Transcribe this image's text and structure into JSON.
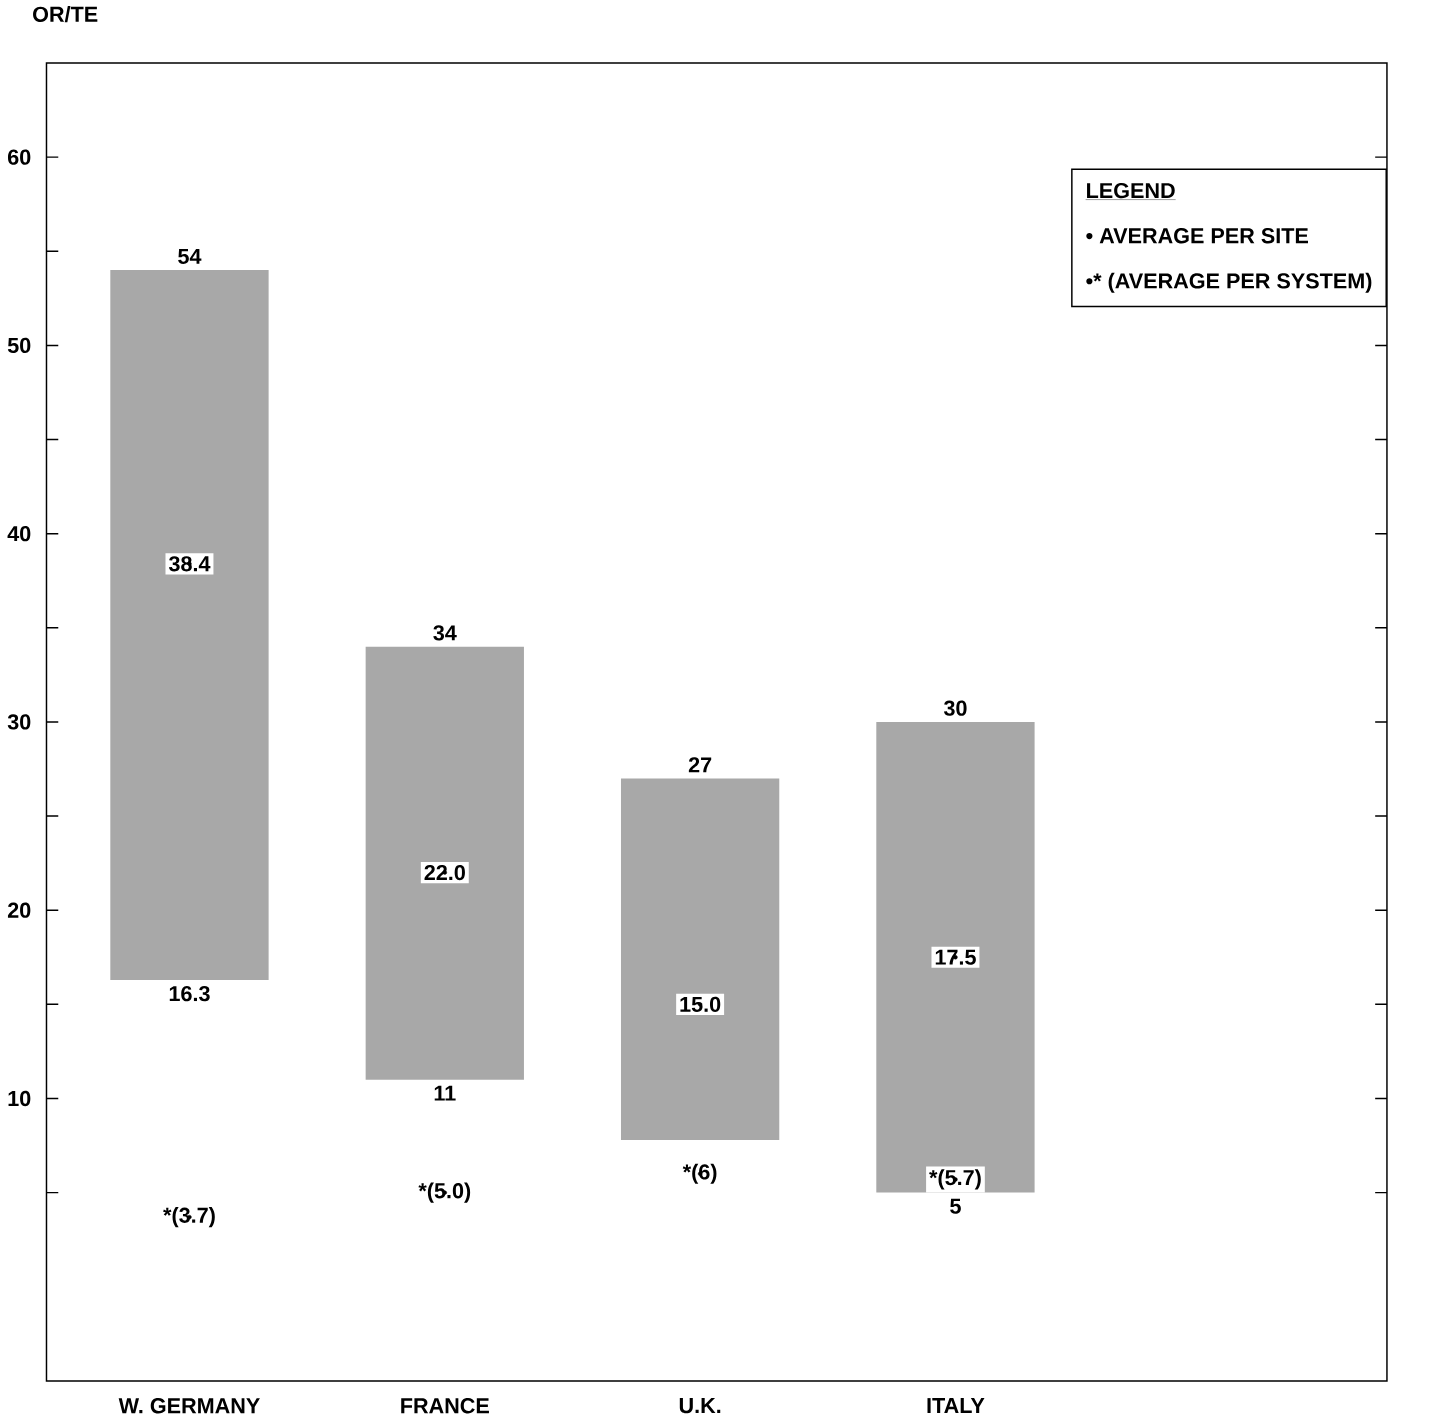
{
  "chart_data": {
    "type": "bar",
    "ylabel": "OR/TE",
    "legend_title": "LEGEND",
    "categories": [
      "W. GERMANY",
      "FRANCE",
      "U.K.",
      "ITALY"
    ],
    "series": [
      {
        "color": "#a8a8a8",
        "base": [
          16.3,
          11,
          7.8,
          5
        ],
        "values": [
          37.7,
          23,
          19.2,
          25
        ]
      },
      {
        "type": "scatter",
        "name": "• AVERAGE PER SITE",
        "color": "#000000",
        "values": [
          38.4,
          22.0,
          15.0,
          17.5
        ],
        "value_labels": [
          "38.4",
          "22.0",
          "15.0",
          "17.5"
        ]
      },
      {
        "type": "scatter",
        "name": "•* (AVERAGE PER SYSTEM)",
        "color": "#000000",
        "values": [
          3.7,
          5.0,
          6,
          5.7
        ],
        "value_labels": [
          "*(3.7)",
          "*(5.0)",
          "*(6)",
          "*(5.7)"
        ]
      }
    ],
    "annotations": [
      {
        "text": "54",
        "x": "W. GERMANY",
        "y": 54
      },
      {
        "text": "16.3",
        "x": "W. GERMANY",
        "y": 16.3
      },
      {
        "text": "34",
        "x": "FRANCE",
        "y": 34
      },
      {
        "text": "11",
        "x": "FRANCE",
        "y": 11
      },
      {
        "text": "27",
        "x": "U.K.",
        "y": 27
      },
      {
        "text": "30",
        "x": "ITALY",
        "y": 30
      },
      {
        "text": "5",
        "x": "ITALY",
        "y": 5
      }
    ],
    "ylim": [
      -5,
      65
    ],
    "yticks": [
      {
        "value": 5,
        "label": null
      },
      10,
      {
        "value": 15,
        "label": null
      },
      20,
      {
        "value": 25,
        "label": null
      },
      30,
      {
        "value": 35,
        "label": null
      },
      40,
      {
        "value": 45,
        "label": null
      },
      50,
      {
        "value": 55,
        "label": null
      },
      60
    ],
    "grid": false,
    "legend": "top right"
  }
}
